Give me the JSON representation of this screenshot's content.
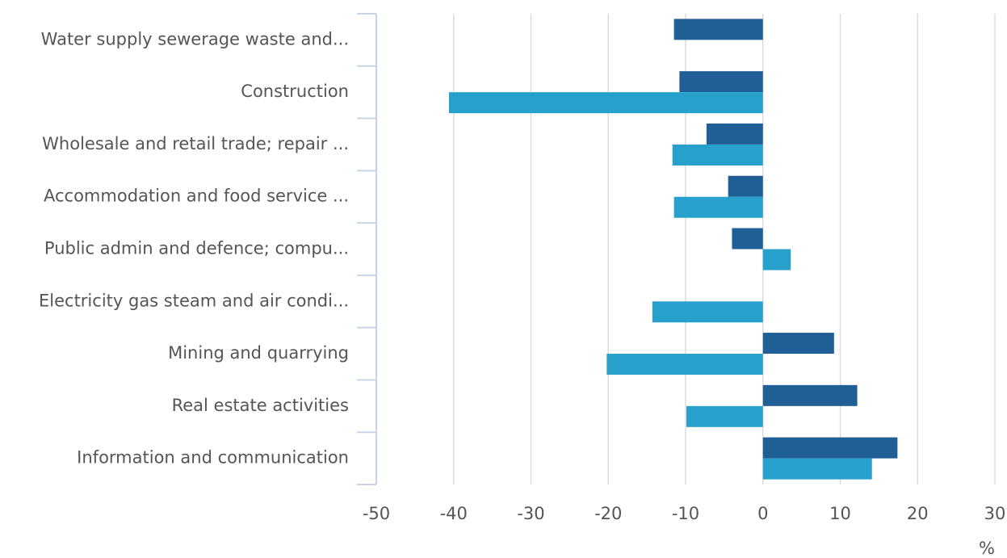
{
  "chart_data": {
    "type": "barh",
    "categories": [
      "Water supply sewerage waste and...",
      "Construction",
      "Wholesale and retail trade; repair ...",
      "Accommodation and food service ...",
      "Public admin and defence; compu...",
      "Electricity gas steam and air condi...",
      "Mining and quarrying",
      "Real estate activities",
      "Information and communication"
    ],
    "series": [
      {
        "color": "#1f5f96",
        "values": [
          -11.5,
          -10.8,
          -7.3,
          -4.5,
          -4.0,
          null,
          9.2,
          12.2,
          17.4
        ]
      },
      {
        "color": "#27a0cc",
        "values": [
          null,
          -40.6,
          -11.7,
          -11.5,
          3.6,
          -14.3,
          -20.2,
          -9.9,
          14.1
        ]
      }
    ],
    "xlabel": "%",
    "xlim": [
      -50,
      30
    ],
    "xticks": [
      -50,
      -40,
      -30,
      -20,
      -10,
      0,
      10,
      20,
      30
    ],
    "grid": true
  }
}
